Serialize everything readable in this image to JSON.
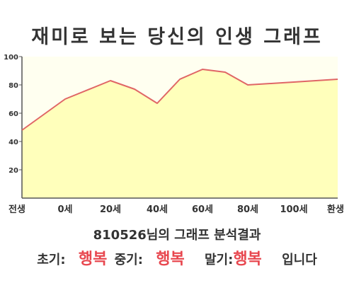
{
  "title": "재미로 보는 당신의 인생 그래프",
  "result": {
    "user_id": "810526",
    "label_suffix": "님의 그래프 분석결과",
    "early_label": "초기:",
    "early_value": "행복",
    "mid_label": "중기:",
    "mid_value": "행복",
    "late_label": "말기:",
    "late_value": "행복",
    "ending": "입니다"
  },
  "chart_data": {
    "type": "area",
    "title": "재미로 보는 당신의 인생 그래프",
    "x_tick_labels": [
      "전생",
      "0세",
      "20세",
      "40세",
      "60세",
      "80세",
      "100세",
      "환생"
    ],
    "y_ticks": [
      20,
      40,
      60,
      80,
      100
    ],
    "ylim": [
      0,
      100
    ],
    "grid": false,
    "colors": {
      "line": "#e06666",
      "fill": "#ffffbb",
      "plot_bg": "#fffff0"
    },
    "series": [
      {
        "x": [
          "전생",
          "0세",
          "20세",
          "30세",
          "40세",
          "50세",
          "60세",
          "70세",
          "80세",
          "100세",
          "환생"
        ],
        "values": [
          48,
          70,
          83,
          77,
          67,
          84,
          91,
          89,
          80,
          82,
          84
        ]
      }
    ]
  }
}
